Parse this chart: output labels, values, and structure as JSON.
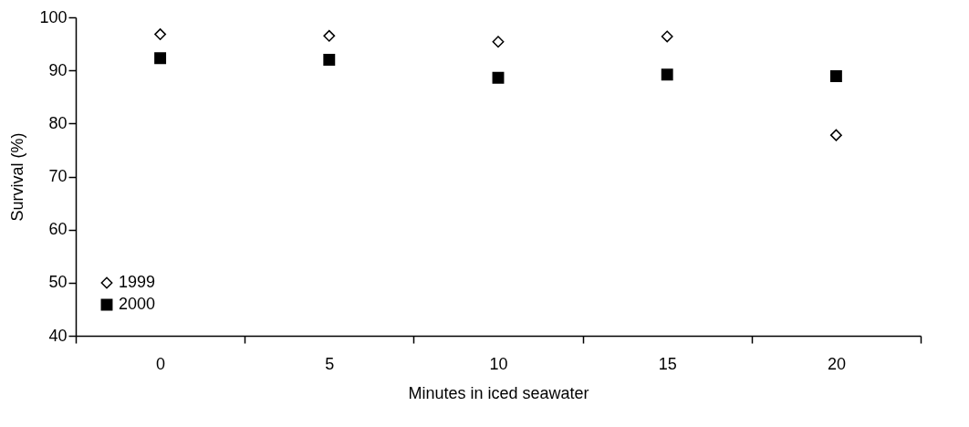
{
  "chart_data": {
    "type": "scatter",
    "xlabel": "Minutes in iced seawater",
    "ylabel": "Survival (%)",
    "categories": [
      "0",
      "5",
      "10",
      "15",
      "20"
    ],
    "series": [
      {
        "name": "1999",
        "color": "#000000",
        "marker": "diamond",
        "values": [
          96.8,
          96.5,
          95.4,
          96.4,
          77.8
        ]
      },
      {
        "name": "2000",
        "color": "#000000",
        "marker": "square",
        "values": [
          92.3,
          92.0,
          88.6,
          89.2,
          88.9
        ]
      }
    ],
    "ylim": [
      40,
      100
    ],
    "yticks": [
      40,
      50,
      60,
      70,
      80,
      90,
      100
    ],
    "grid": false,
    "legend": "bottom left"
  }
}
